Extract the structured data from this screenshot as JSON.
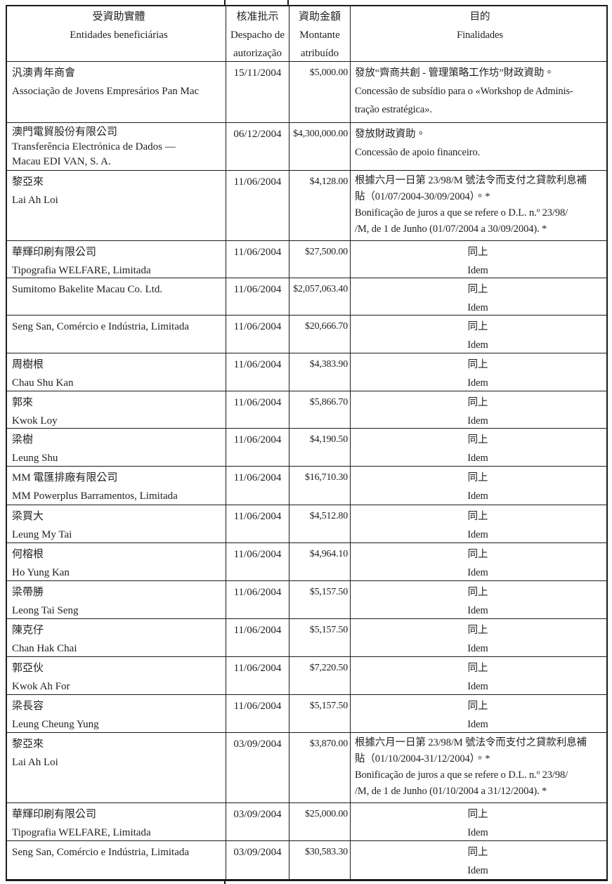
{
  "table": {
    "headers": [
      {
        "lines": [
          "受資助實體",
          "Entidades beneficiárias"
        ]
      },
      {
        "lines": [
          "核准批示",
          "Despacho de",
          "autorização"
        ]
      },
      {
        "lines": [
          "資助金額",
          "Montante",
          "atribuído"
        ]
      },
      {
        "lines": [
          "目的",
          "Finalidades"
        ]
      }
    ],
    "rows": [
      {
        "entity": [
          "汎澳青年商會",
          "Associação de Jovens Empresários Pan Mac"
        ],
        "date": "15/11/2004",
        "amount": "$5,000.00",
        "purpose": [
          "發放“齊商共創 - 管理策略工作坊”財政資助。",
          "Concessão de subsídio para o «Workshop de Adminis-",
          "tração estratégica»."
        ]
      },
      {
        "entity": [
          "澳門電貿股份有限公司",
          "Transferência Electrónica de Dados —",
          "Macau EDI VAN, S. A."
        ],
        "date": "06/12/2004",
        "amount": "$4,300,000.00",
        "purpose": [
          "發放財政資助。",
          "Concessão de apoio financeiro."
        ]
      },
      {
        "entity": [
          "黎亞來",
          "Lai Ah Loi"
        ],
        "date": "11/06/2004",
        "amount": "$4,128.00",
        "purpose": [
          "根據六月一日第 23/98/M 號法令而支付之貸款利息補",
          "貼（01/07/2004-30/09/2004）。*",
          "Bonificação de juros a que se refere o D.L. n.º 23/98/",
          "/M, de 1 de Junho (01/07/2004 a 30/09/2004). *"
        ]
      },
      {
        "entity": [
          "華輝印刷有限公司",
          "Tipografia WELFARE, Limitada"
        ],
        "date": "11/06/2004",
        "amount": "$27,500.00",
        "purpose": [
          "同上",
          "Idem"
        ]
      },
      {
        "entity": [
          "Sumitomo Bakelite Macau Co. Ltd."
        ],
        "date": "11/06/2004",
        "amount": "$2,057,063.40",
        "purpose": [
          "同上",
          "Idem"
        ]
      },
      {
        "entity": [
          "Seng San, Comércio e Indústria, Limitada"
        ],
        "date": "11/06/2004",
        "amount": "$20,666.70",
        "purpose": [
          "同上",
          "Idem"
        ]
      },
      {
        "entity": [
          "周樹根",
          "Chau Shu Kan"
        ],
        "date": "11/06/2004",
        "amount": "$4,383.90",
        "purpose": [
          "同上",
          "Idem"
        ]
      },
      {
        "entity": [
          "郭來",
          "Kwok Loy"
        ],
        "date": "11/06/2004",
        "amount": "$5,866.70",
        "purpose": [
          "同上",
          "Idem"
        ]
      },
      {
        "entity": [
          "梁樹",
          "Leung Shu"
        ],
        "date": "11/06/2004",
        "amount": "$4,190.50",
        "purpose": [
          "同上",
          "Idem"
        ]
      },
      {
        "entity": [
          "MM 電匯排廠有限公司",
          "MM Powerplus Barramentos, Limitada"
        ],
        "date": "11/06/2004",
        "amount": "$16,710.30",
        "purpose": [
          "同上",
          "Idem"
        ]
      },
      {
        "entity": [
          "梁買大",
          "Leung My Tai"
        ],
        "date": "11/06/2004",
        "amount": "$4,512.80",
        "purpose": [
          "同上",
          "Idem"
        ]
      },
      {
        "entity": [
          "何榕根",
          "Ho Yung Kan"
        ],
        "date": "11/06/2004",
        "amount": "$4,964.10",
        "purpose": [
          "同上",
          "Idem"
        ]
      },
      {
        "entity": [
          "梁帶勝",
          "Leong Tai Seng"
        ],
        "date": "11/06/2004",
        "amount": "$5,157.50",
        "purpose": [
          "同上",
          "Idem"
        ]
      },
      {
        "entity": [
          "陳克仔",
          "Chan Hak Chai"
        ],
        "date": "11/06/2004",
        "amount": "$5,157.50",
        "purpose": [
          "同上",
          "Idem"
        ]
      },
      {
        "entity": [
          "郭亞伙",
          "Kwok Ah For"
        ],
        "date": "11/06/2004",
        "amount": "$7,220.50",
        "purpose": [
          "同上",
          "Idem"
        ]
      },
      {
        "entity": [
          "梁長容",
          "Leung Cheung Yung"
        ],
        "date": "11/06/2004",
        "amount": "$5,157.50",
        "purpose": [
          "同上",
          "Idem"
        ]
      },
      {
        "entity": [
          "黎亞來",
          "Lai Ah Loi"
        ],
        "date": "03/09/2004",
        "amount": "$3,870.00",
        "purpose": [
          "根據六月一日第 23/98/M 號法令而支付之貸款利息補",
          "貼（01/10/2004-31/12/2004）。*",
          "Bonificação de juros a que se refere o D.L. n.º 23/98/",
          "/M, de 1 de Junho (01/10/2004 a 31/12/2004). *"
        ]
      },
      {
        "entity": [
          "華輝印刷有限公司",
          "Tipografia WELFARE, Limitada"
        ],
        "date": "03/09/2004",
        "amount": "$25,000.00",
        "purpose": [
          "同上",
          "Idem"
        ]
      },
      {
        "entity": [
          "Seng San, Comércio e Indústria, Limitada"
        ],
        "date": "03/09/2004",
        "amount": "$30,583.30",
        "purpose": [
          "同上",
          "Idem"
        ]
      }
    ]
  }
}
